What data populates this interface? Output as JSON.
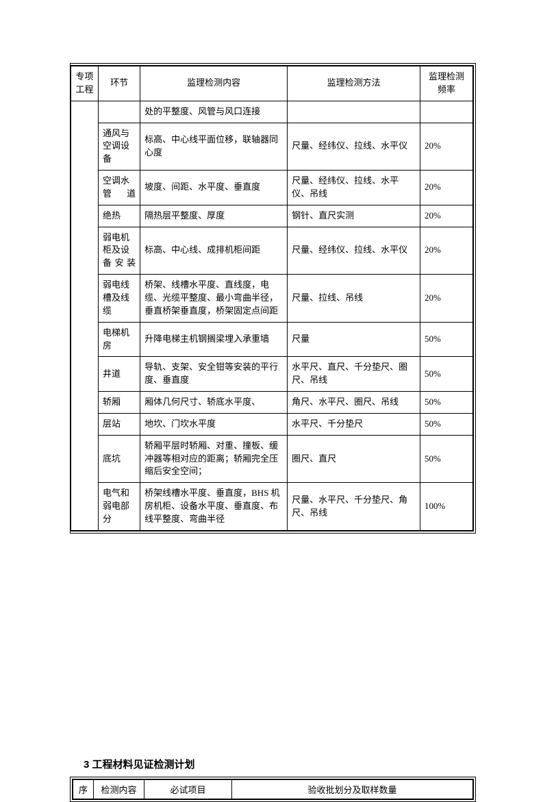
{
  "table1": {
    "headers": {
      "c1": "专项工程",
      "c2": "环节",
      "c3": "监理检测内容",
      "c4": "监理检测方法",
      "c5": "监理检测频率"
    },
    "rows": [
      {
        "c2": "",
        "c3": "处的平整度、风管与风口连接",
        "c4": "",
        "c5": ""
      },
      {
        "c2": "通风与空调设备",
        "c3": "标高、中心线平面位移，联轴器同心度",
        "c4": "尺量、经纬仪、拉线、水平仪",
        "c5": "20%"
      },
      {
        "c2": "空调水管道",
        "c3": "坡度、间距、水平度、垂直度",
        "c4": "尺量、经纬仪、拉线、水平仪、吊线",
        "c5": "20%"
      },
      {
        "c2": "绝热",
        "c3": "隔热层平整度、厚度",
        "c4": "钢针、直尺实测",
        "c5": "20%"
      },
      {
        "c2": "弱电机柜及设备安装",
        "c3": "标高、中心线、成排机柜间距",
        "c4": "尺量、经纬仪、拉线、水平仪",
        "c5": "20%"
      },
      {
        "c2": "弱电线槽及线缆",
        "c3": "桥架、线槽水平度、直线度，电缆、光缆平整度、最小弯曲半径，垂直桥架垂直度，桥架固定点间距",
        "c4": "尺量、拉线、吊线",
        "c5": "20%"
      },
      {
        "c2": "电梯机房",
        "c3": "升降电梯主机钢搁梁埋入承重墙",
        "c4": "尺量",
        "c5": "50%"
      },
      {
        "c2": "井道",
        "c3": "导轨、支架、安全钳等安装的平行度、垂直度",
        "c4": "水平尺、直尺、千分垫尺、圈尺、吊线",
        "c5": "50%"
      },
      {
        "c2": "轿厢",
        "c3": "厢体几何尺寸、轿底水平度、",
        "c4": "角尺、水平尺、圈尺、吊线",
        "c5": "50%"
      },
      {
        "c2": "层站",
        "c3": "地坎、门坎水平度",
        "c4": "水平尺、千分垫尺",
        "c5": "50%"
      },
      {
        "c2": "底坑",
        "c3": "轿厢平层时轿厢、对重、撞板、缓冲器等相对应的距离；轿厢完全压缩后安全空间；",
        "c4": "圈尺、直尺",
        "c5": "50%"
      },
      {
        "c2": "电气和弱电部分",
        "c3": "桥架线槽水平度、垂直度，BHS 机房机柜、设备水平度、垂直度、布线平整度、弯曲半径",
        "c4": "尺量、水平尺、千分垫尺、角尺、吊线",
        "c5": "100%"
      }
    ]
  },
  "heading": "3 工程材料见证检测计划",
  "table2": {
    "headers": {
      "c1": "序",
      "c2": "检测内容",
      "c3": "必试项目",
      "c4": "验收批划分及取样数量"
    }
  }
}
